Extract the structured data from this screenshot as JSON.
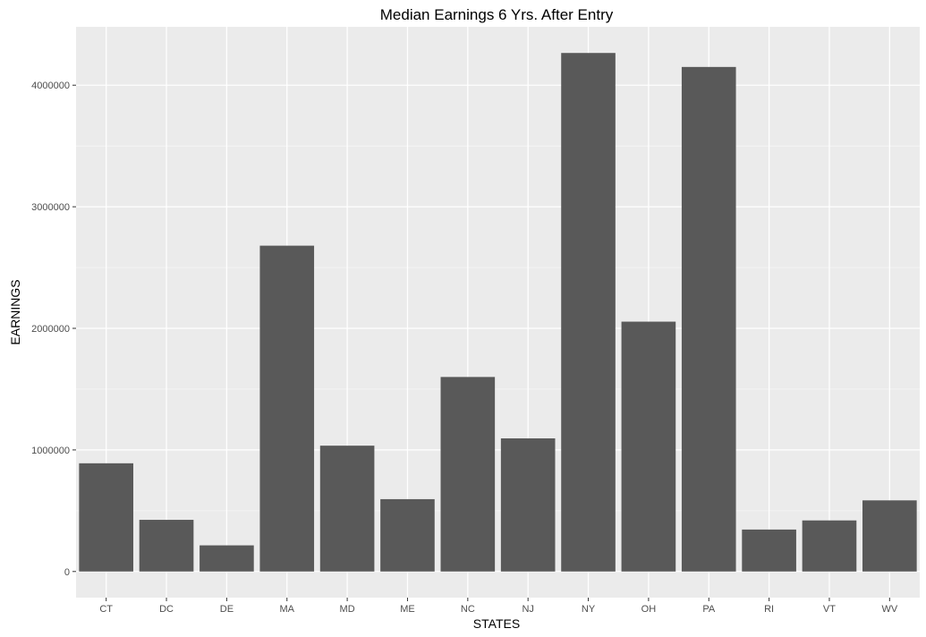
{
  "chart_data": {
    "type": "bar",
    "title": "Median Earnings 6 Yrs. After Entry",
    "xlabel": "STATES",
    "ylabel": "EARNINGS",
    "categories": [
      "CT",
      "DC",
      "DE",
      "MA",
      "MD",
      "ME",
      "NC",
      "NJ",
      "NY",
      "OH",
      "PA",
      "RI",
      "VT",
      "WV"
    ],
    "values": [
      890000,
      425000,
      215000,
      2680000,
      1035000,
      595000,
      1600000,
      1095000,
      4265000,
      2055000,
      4150000,
      345000,
      420000,
      585000
    ],
    "yticks": [
      0,
      1000000,
      2000000,
      3000000,
      4000000
    ],
    "ytick_labels": [
      "0",
      "1000000",
      "2000000",
      "3000000",
      "4000000"
    ],
    "ylim": [
      -215000,
      4480000
    ],
    "grid": true,
    "legend": "none",
    "colors": {
      "bar": "#595959",
      "panel_background": "#ebebeb",
      "grid_major": "#ffffff",
      "grid_minor": "#f5f5f5",
      "tick_text": "#4d4d4d",
      "title_text": "#000000"
    }
  }
}
